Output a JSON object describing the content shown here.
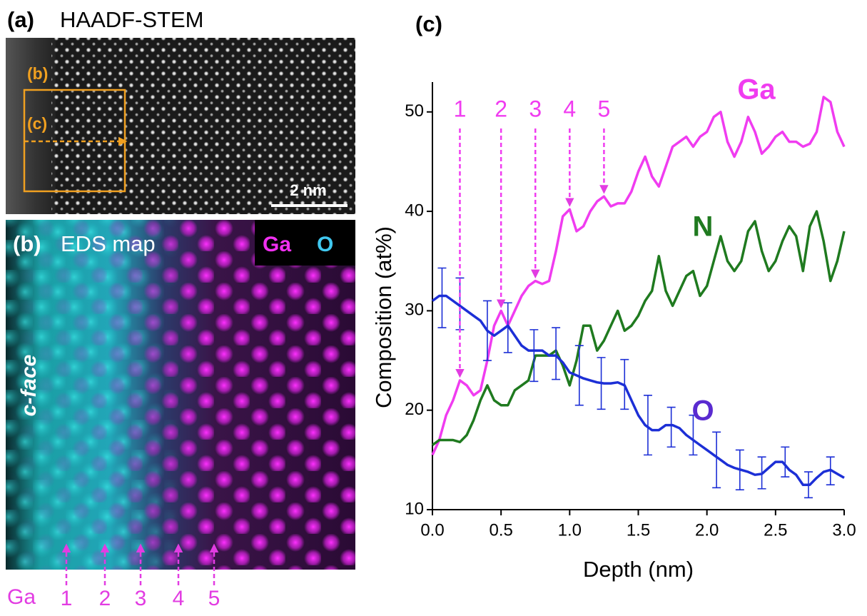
{
  "panel_a": {
    "label": "(a)",
    "title": "HAADF-STEM",
    "box_labels": [
      "(b)",
      "(c)"
    ],
    "scale_bar": "2 nm"
  },
  "panel_b": {
    "label": "(b)",
    "title": "EDS map",
    "legend": [
      "Ga",
      "O"
    ],
    "side_label": "c-face",
    "bottom_label": "Ga",
    "column_numbers": [
      "1",
      "2",
      "3",
      "4",
      "5"
    ]
  },
  "chart_data": {
    "type": "line",
    "panel_label": "(c)",
    "x_label": "Depth (nm)",
    "y_label": "Composition (at%)",
    "x": [
      0,
      0.05,
      0.1,
      0.15,
      0.2,
      0.25,
      0.3,
      0.35,
      0.4,
      0.45,
      0.5,
      0.55,
      0.6,
      0.65,
      0.7,
      0.75,
      0.8,
      0.85,
      0.9,
      0.95,
      1.0,
      1.05,
      1.1,
      1.15,
      1.2,
      1.25,
      1.3,
      1.35,
      1.4,
      1.45,
      1.5,
      1.55,
      1.6,
      1.65,
      1.7,
      1.75,
      1.8,
      1.85,
      1.9,
      1.95,
      2.0,
      2.05,
      2.1,
      2.15,
      2.2,
      2.25,
      2.3,
      2.35,
      2.4,
      2.45,
      2.5,
      2.55,
      2.6,
      2.65,
      2.7,
      2.75,
      2.8,
      2.85,
      2.9,
      2.95,
      3.0
    ],
    "series": [
      {
        "name": "Ga",
        "color": "#f03cf0",
        "values": [
          15.5,
          17,
          19.5,
          21,
          23,
          22.5,
          21.5,
          22,
          25,
          28.5,
          30,
          28.5,
          30,
          31.5,
          32.5,
          33,
          32.7,
          33,
          36,
          39.5,
          40.2,
          38,
          38.5,
          40,
          41,
          41.5,
          40.5,
          40.8,
          40.8,
          42,
          44,
          45.5,
          43.5,
          42.5,
          44.5,
          46.5,
          47,
          47.5,
          46.5,
          47.5,
          48,
          49.5,
          50,
          47,
          45.5,
          47,
          49.5,
          48,
          45.8,
          46.5,
          47.5,
          48,
          47,
          47,
          46.5,
          46.8,
          48,
          51.5,
          51,
          48,
          46.5
        ]
      },
      {
        "name": "N",
        "color": "#1f7a1f",
        "values": [
          16.5,
          17,
          17,
          17,
          16.8,
          17.5,
          19,
          21,
          22.5,
          21,
          20.5,
          20.5,
          22,
          22.5,
          23,
          25.5,
          25.5,
          25.5,
          26,
          24.5,
          22.5,
          25,
          28.5,
          28.5,
          26,
          27,
          28.5,
          30,
          28,
          28.5,
          29.5,
          31,
          32,
          35.5,
          32,
          30.5,
          32,
          33.5,
          34,
          31.5,
          32.5,
          35,
          37.5,
          35,
          34,
          35,
          38,
          39,
          36,
          34,
          35,
          37,
          38.5,
          37.5,
          34,
          38.5,
          40,
          37,
          33,
          35,
          38
        ]
      },
      {
        "name": "O",
        "color": "#1c2fd6",
        "values": [
          31,
          31.5,
          31.5,
          31,
          30.5,
          30,
          29.5,
          29,
          28,
          27.5,
          28,
          28.5,
          27.5,
          26.5,
          26,
          26,
          26,
          25.5,
          25.5,
          24.8,
          23.8,
          23.5,
          23.2,
          23,
          22.8,
          22.7,
          22.7,
          22.8,
          22.5,
          21,
          19.5,
          18.5,
          18,
          18,
          18.5,
          18.5,
          18.2,
          17.5,
          17,
          16.5,
          16,
          15.5,
          15,
          14.5,
          14.2,
          14,
          13.8,
          13.5,
          13.6,
          14.2,
          14.8,
          14.8,
          14,
          13.5,
          12.5,
          12.5,
          13.2,
          13.8,
          14,
          13.6,
          13.2
        ],
        "error_bars": {
          "x": [
            0.07,
            0.2,
            0.4,
            0.55,
            0.74,
            0.9,
            1.07,
            1.23,
            1.4,
            1.57,
            1.74,
            1.9,
            2.07,
            2.24,
            2.4,
            2.57,
            2.74,
            2.9
          ],
          "values": [
            31.3,
            30.7,
            28,
            28.3,
            25.5,
            25.7,
            23.5,
            22.7,
            22.6,
            18.5,
            18.3,
            17.5,
            15,
            14,
            13.7,
            14.8,
            12.5,
            13.9
          ],
          "errors": [
            3,
            2.6,
            3,
            2.5,
            2.6,
            2.6,
            3,
            2.6,
            2.5,
            3,
            2,
            2,
            2.8,
            2,
            1.6,
            1.5,
            1.3,
            1.4
          ]
        }
      }
    ],
    "markers": [
      {
        "label": "1",
        "x": 0.2
      },
      {
        "label": "2",
        "x": 0.5
      },
      {
        "label": "3",
        "x": 0.75
      },
      {
        "label": "4",
        "x": 1.0
      },
      {
        "label": "5",
        "x": 1.25
      }
    ],
    "xlim": [
      0,
      3
    ],
    "ylim": [
      10,
      53
    ],
    "xticks": [
      {
        "value": 0,
        "label": "0.0"
      },
      {
        "value": 0.5,
        "label": "0.5"
      },
      {
        "value": 1,
        "label": "1.0"
      },
      {
        "value": 1.5,
        "label": "1.5"
      },
      {
        "value": 2,
        "label": "2.0"
      },
      {
        "value": 2.5,
        "label": "2.5"
      },
      {
        "value": 3,
        "label": "3.0"
      }
    ],
    "yticks": [
      10,
      20,
      30,
      40,
      50
    ]
  }
}
